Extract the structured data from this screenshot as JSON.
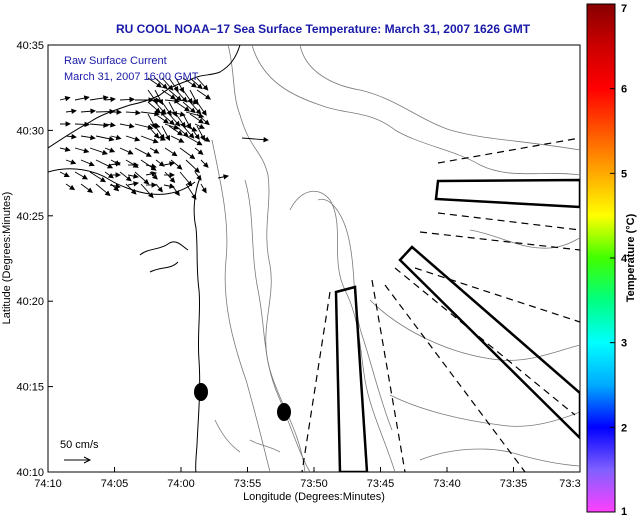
{
  "chart_data": {
    "type": "map",
    "title": "RU COOL  NOAA−17  Sea Surface Temperature:  March 31, 2007 1626 GMT",
    "xlabel": "Longitude (Degrees:Minutes)",
    "ylabel": "Latitude (Degrees:Minutes)",
    "x_ticks": [
      "74:10",
      "74:05",
      "74:00",
      "73:55",
      "73:50",
      "73:45",
      "73:40",
      "73:35",
      "73:3"
    ],
    "y_ticks": [
      "40:35",
      "40:30",
      "40:25",
      "40:20",
      "40:15",
      "40:10"
    ],
    "annotation_lines": [
      "Raw Surface Current",
      "March 31, 2007 16:00 GMT"
    ],
    "scale_label": "50 cm/s",
    "colorbar": {
      "label": "Temperature (°C)",
      "ticks": [
        "1",
        "2",
        "3",
        "4",
        "5",
        "6",
        "7"
      ],
      "range": [
        1,
        7
      ],
      "colors": [
        "#ff40ff",
        "#8060ff",
        "#0000ff",
        "#00aaff",
        "#00ffff",
        "#00ff80",
        "#40ff00",
        "#ffff00",
        "#ffaa00",
        "#ff5500",
        "#ff0000",
        "#cc0000",
        "#880000"
      ]
    },
    "grid": false
  },
  "colors": {
    "title": "#1a1aa8",
    "coast": "#000000",
    "bathymetry": "#777777"
  }
}
